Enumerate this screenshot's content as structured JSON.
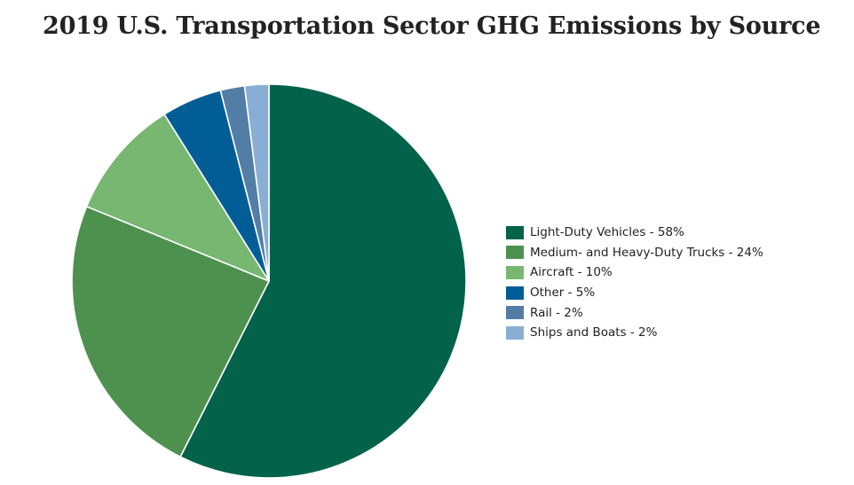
{
  "chart_data": {
    "type": "pie",
    "title": "2019 U.S. Transportation Sector GHG Emissions by Source",
    "slices": [
      {
        "label": "Light-Duty Vehicles",
        "value": 58,
        "legend": "Light-Duty Vehicles - 58%",
        "color": "#02634a"
      },
      {
        "label": "Medium- and Heavy-Duty Trucks",
        "value": 24,
        "legend": "Medium- and Heavy-Duty Trucks - 24%",
        "color": "#4e914f"
      },
      {
        "label": "Aircraft",
        "value": 10,
        "legend": "Aircraft - 10%",
        "color": "#77b772"
      },
      {
        "label": "Other",
        "value": 5,
        "legend": "Other - 5%",
        "color": "#005d96"
      },
      {
        "label": "Rail",
        "value": 2,
        "legend": "Rail - 2%",
        "color": "#527ea6"
      },
      {
        "label": "Ships and Boats",
        "value": 2,
        "legend": "Ships and Boats - 2%",
        "color": "#89aed3"
      }
    ],
    "legend_position": "right",
    "start_angle_deg": 0,
    "direction": "clockwise"
  }
}
